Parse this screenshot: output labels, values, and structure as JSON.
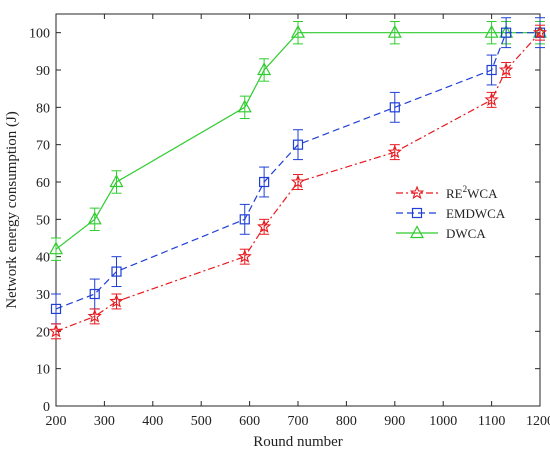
{
  "chart_data": {
    "type": "line",
    "xlabel": "Round number",
    "ylabel": "Network energy consumption (J)",
    "xlim": [
      200,
      1200
    ],
    "ylim": [
      0,
      105
    ],
    "xticks": [
      200,
      300,
      400,
      500,
      600,
      700,
      800,
      900,
      1000,
      1100,
      1200
    ],
    "yticks": [
      0,
      10,
      20,
      30,
      40,
      50,
      60,
      70,
      80,
      90,
      100
    ],
    "grid": false,
    "legend_position": "right",
    "series": [
      {
        "name": "RE²WCA",
        "legend_text": {
          "prefix": "RE",
          "sup": "2",
          "suffix": "WCA"
        },
        "color": "#e8191f",
        "linestyle": "dashdot",
        "marker": "star",
        "x": [
          200,
          280,
          325,
          590,
          630,
          700,
          900,
          1100,
          1130,
          1200
        ],
        "y": [
          20,
          24,
          28,
          40,
          48,
          60,
          68,
          82,
          90,
          100
        ],
        "error": [
          2,
          2,
          2,
          2,
          2,
          2,
          2,
          2,
          2,
          2
        ]
      },
      {
        "name": "EMDWCA",
        "legend_text": {
          "prefix": "EMDWCA",
          "sup": "",
          "suffix": ""
        },
        "color": "#1f3fd6",
        "linestyle": "dashed",
        "marker": "square",
        "x": [
          200,
          280,
          325,
          590,
          630,
          700,
          900,
          1100,
          1130,
          1200
        ],
        "y": [
          26,
          30,
          36,
          50,
          60,
          70,
          80,
          90,
          100,
          100
        ],
        "error": [
          4,
          4,
          4,
          4,
          4,
          4,
          4,
          4,
          4,
          4
        ]
      },
      {
        "name": "DWCA",
        "legend_text": {
          "prefix": "DWCA",
          "sup": "",
          "suffix": ""
        },
        "color": "#2ecc2e",
        "linestyle": "solid",
        "marker": "triangle",
        "x": [
          200,
          280,
          325,
          590,
          630,
          700,
          900,
          1100,
          1130,
          1200
        ],
        "y": [
          42,
          50,
          60,
          80,
          90,
          100,
          100,
          100,
          100,
          100
        ],
        "error": [
          3,
          3,
          3,
          3,
          3,
          3,
          3,
          3,
          3,
          3
        ]
      }
    ]
  }
}
